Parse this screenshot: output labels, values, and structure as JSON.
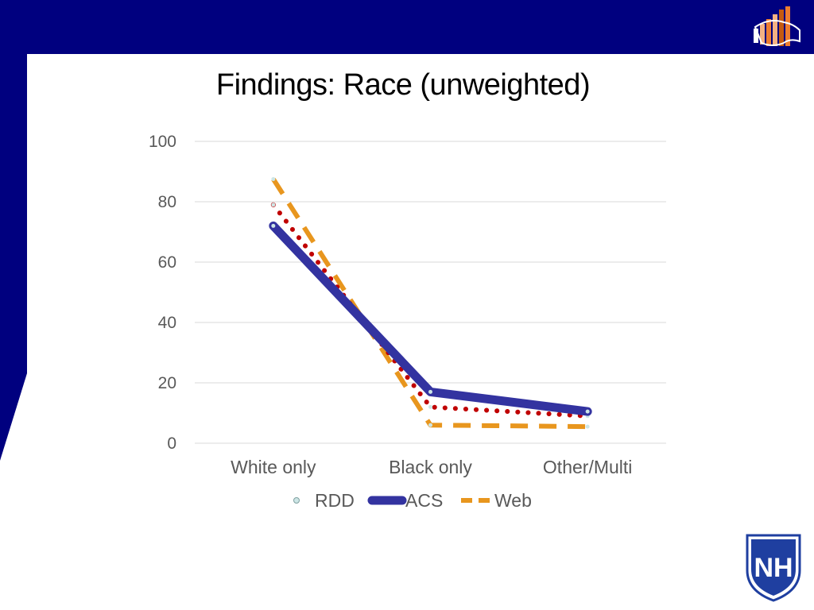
{
  "slide": {
    "title": "Findings: Race (unweighted)",
    "colors": {
      "banner": "#00007f",
      "title_text": "#000000"
    },
    "icons": [
      "bar-chart-map-logo-icon",
      "unh-crest-icon"
    ],
    "logo_text": "NH"
  },
  "chart_data": {
    "type": "line",
    "title": "",
    "xlabel": "",
    "ylabel": "",
    "categories": [
      "White only",
      "Black only",
      "Other/Multi"
    ],
    "ylim": [
      0,
      100
    ],
    "yticks": [
      0,
      20,
      40,
      60,
      80,
      100
    ],
    "grid": true,
    "legend_position": "bottom",
    "series": [
      {
        "name": "RDD",
        "values": [
          79,
          12,
          9
        ],
        "color": "#c00000",
        "style": "dotted"
      },
      {
        "name": "ACS",
        "values": [
          72,
          17,
          10.5
        ],
        "color": "#3333a0",
        "style": "solid-thick"
      },
      {
        "name": "Web",
        "values": [
          87.5,
          6,
          5.5
        ],
        "color": "#e8961e",
        "style": "dashed"
      }
    ]
  }
}
